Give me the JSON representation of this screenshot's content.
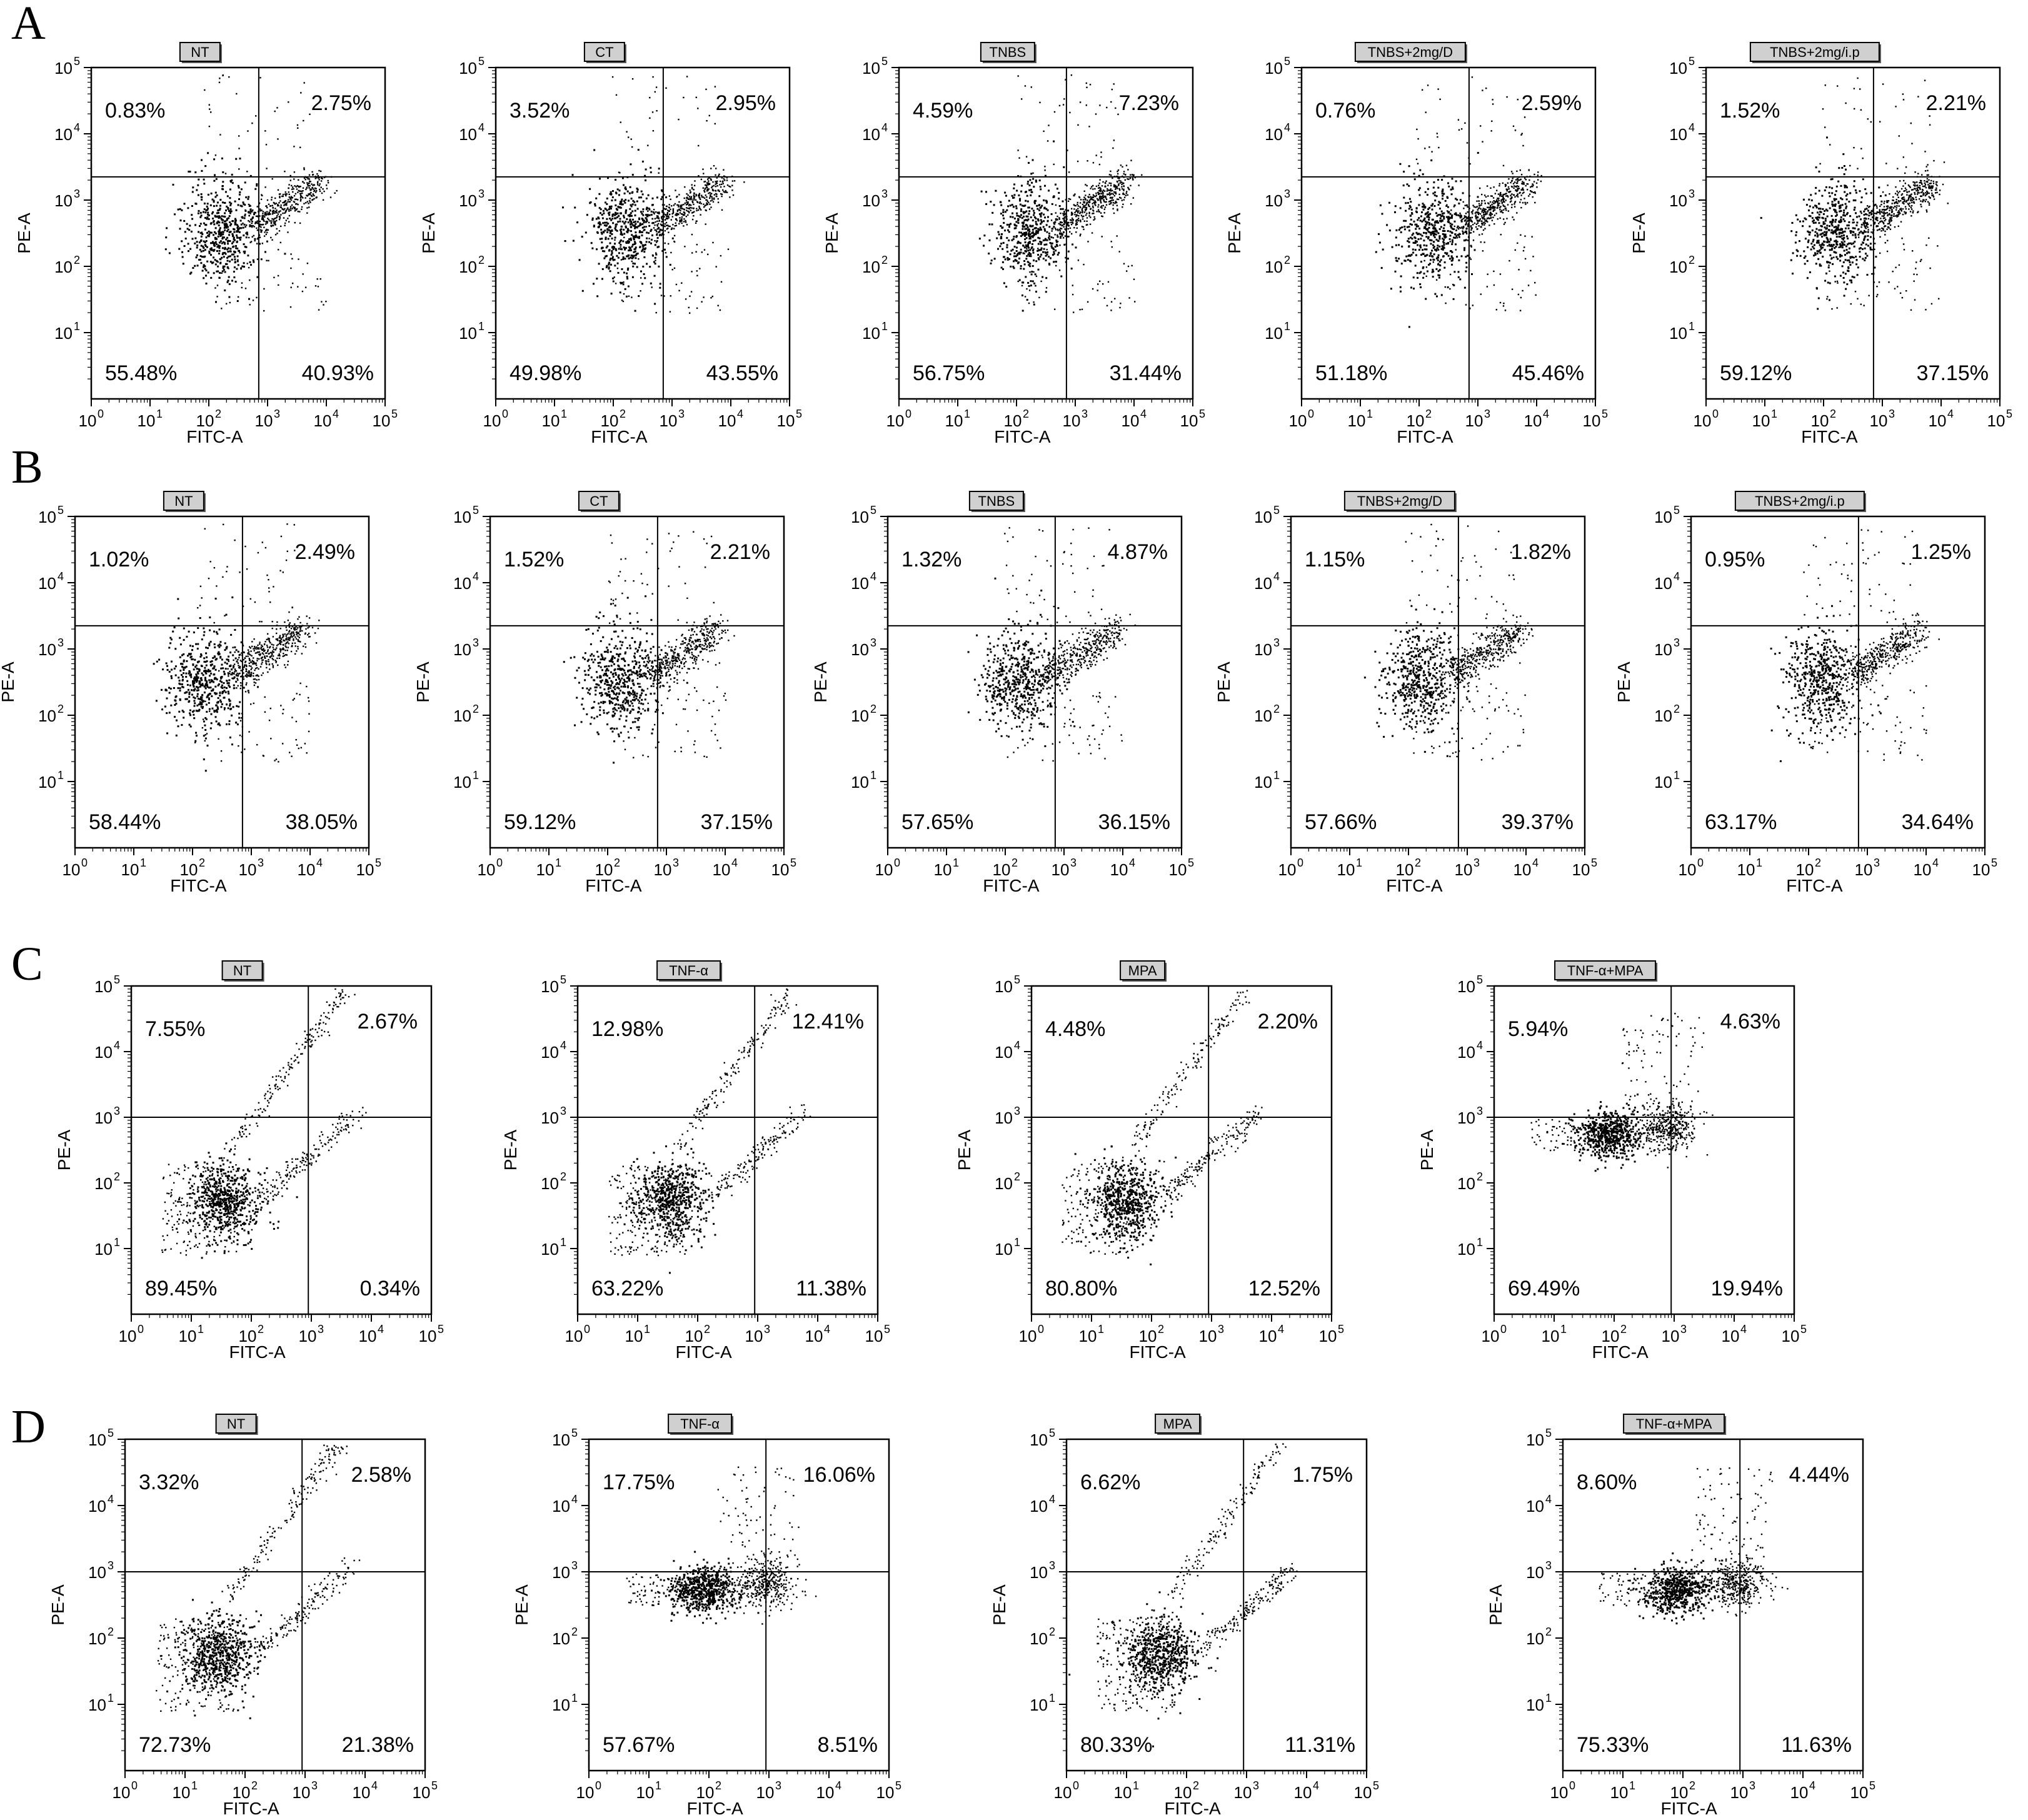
{
  "figure": {
    "rows": [
      {
        "letter": "A",
        "plots": [
          {
            "title": "NT",
            "quadrants": {
              "ul": "0.83%",
              "ur": "2.75%",
              "ll": "55.48%",
              "lr": "40.93%"
            }
          },
          {
            "title": "CT",
            "quadrants": {
              "ul": "3.52%",
              "ur": "2.95%",
              "ll": "49.98%",
              "lr": "43.55%"
            }
          },
          {
            "title": "TNBS",
            "quadrants": {
              "ul": "4.59%",
              "ur": "7.23%",
              "ll": "56.75%",
              "lr": "31.44%"
            }
          },
          {
            "title": "TNBS+2mg/D",
            "quadrants": {
              "ul": "0.76%",
              "ur": "2.59%",
              "ll": "51.18%",
              "lr": "45.46%"
            }
          },
          {
            "title": "TNBS+2mg/i.p",
            "quadrants": {
              "ul": "1.52%",
              "ur": "2.21%",
              "ll": "59.12%",
              "lr": "37.15%"
            }
          }
        ]
      },
      {
        "letter": "B",
        "plots": [
          {
            "title": "NT",
            "quadrants": {
              "ul": "1.02%",
              "ur": "2.49%",
              "ll": "58.44%",
              "lr": "38.05%"
            }
          },
          {
            "title": "CT",
            "quadrants": {
              "ul": "1.52%",
              "ur": "2.21%",
              "ll": "59.12%",
              "lr": "37.15%"
            }
          },
          {
            "title": "TNBS",
            "quadrants": {
              "ul": "1.32%",
              "ur": "4.87%",
              "ll": "57.65%",
              "lr": "36.15%"
            }
          },
          {
            "title": "TNBS+2mg/D",
            "quadrants": {
              "ul": "1.15%",
              "ur": "1.82%",
              "ll": "57.66%",
              "lr": "39.37%"
            }
          },
          {
            "title": "TNBS+2mg/i.p",
            "quadrants": {
              "ul": "0.95%",
              "ur": "1.25%",
              "ll": "63.17%",
              "lr": "34.64%"
            }
          }
        ]
      },
      {
        "letter": "C",
        "plots": [
          {
            "title": "NT",
            "quadrants": {
              "ul": "7.55%",
              "ur": "2.67%",
              "ll": "89.45%",
              "lr": "0.34%"
            }
          },
          {
            "title": "TNF-α",
            "quadrants": {
              "ul": "12.98%",
              "ur": "12.41%",
              "ll": "63.22%",
              "lr": "11.38%"
            }
          },
          {
            "title": "MPA",
            "quadrants": {
              "ul": "4.48%",
              "ur": "2.20%",
              "ll": "80.80%",
              "lr": "12.52%"
            }
          },
          {
            "title": "TNF-α+MPA",
            "quadrants": {
              "ul": "5.94%",
              "ur": "4.63%",
              "ll": "69.49%",
              "lr": "19.94%"
            }
          }
        ]
      },
      {
        "letter": "D",
        "plots": [
          {
            "title": "NT",
            "quadrants": {
              "ul": "3.32%",
              "ur": "2.58%",
              "ll": "72.73%",
              "lr": "21.38%"
            }
          },
          {
            "title": "TNF-α",
            "quadrants": {
              "ul": "17.75%",
              "ur": "16.06%",
              "ll": "57.67%",
              "lr": "8.51%"
            }
          },
          {
            "title": "MPA",
            "quadrants": {
              "ul": "6.62%",
              "ur": "1.75%",
              "ll": "80.33%",
              "lr": "11.31%"
            }
          },
          {
            "title": "TNF-α+MPA",
            "quadrants": {
              "ul": "8.60%",
              "ur": "4.44%",
              "ll": "75.33%",
              "lr": "11.63%"
            }
          }
        ]
      }
    ]
  },
  "chart_data": {
    "type": "scatter",
    "xlabel": "FITC-A",
    "ylabel": "PE-A",
    "x_scale": "log",
    "y_scale": "log",
    "xlim": [
      1,
      100000
    ],
    "ylim": [
      1,
      100000
    ],
    "x_ticks": [
      "10",
      "10",
      "10",
      "10",
      "10",
      "10"
    ],
    "x_tick_exponents": [
      "0",
      "1",
      "2",
      "3",
      "4",
      "5"
    ],
    "y_ticks": [
      "10",
      "10",
      "10",
      "10",
      "10"
    ],
    "y_tick_exponents": [
      "1",
      "2",
      "3",
      "4",
      "5"
    ],
    "grid": false,
    "quadrant_gates": true,
    "colors": {
      "points": "#000000",
      "axes": "#000000",
      "title_box": "#d0d0d0"
    }
  }
}
